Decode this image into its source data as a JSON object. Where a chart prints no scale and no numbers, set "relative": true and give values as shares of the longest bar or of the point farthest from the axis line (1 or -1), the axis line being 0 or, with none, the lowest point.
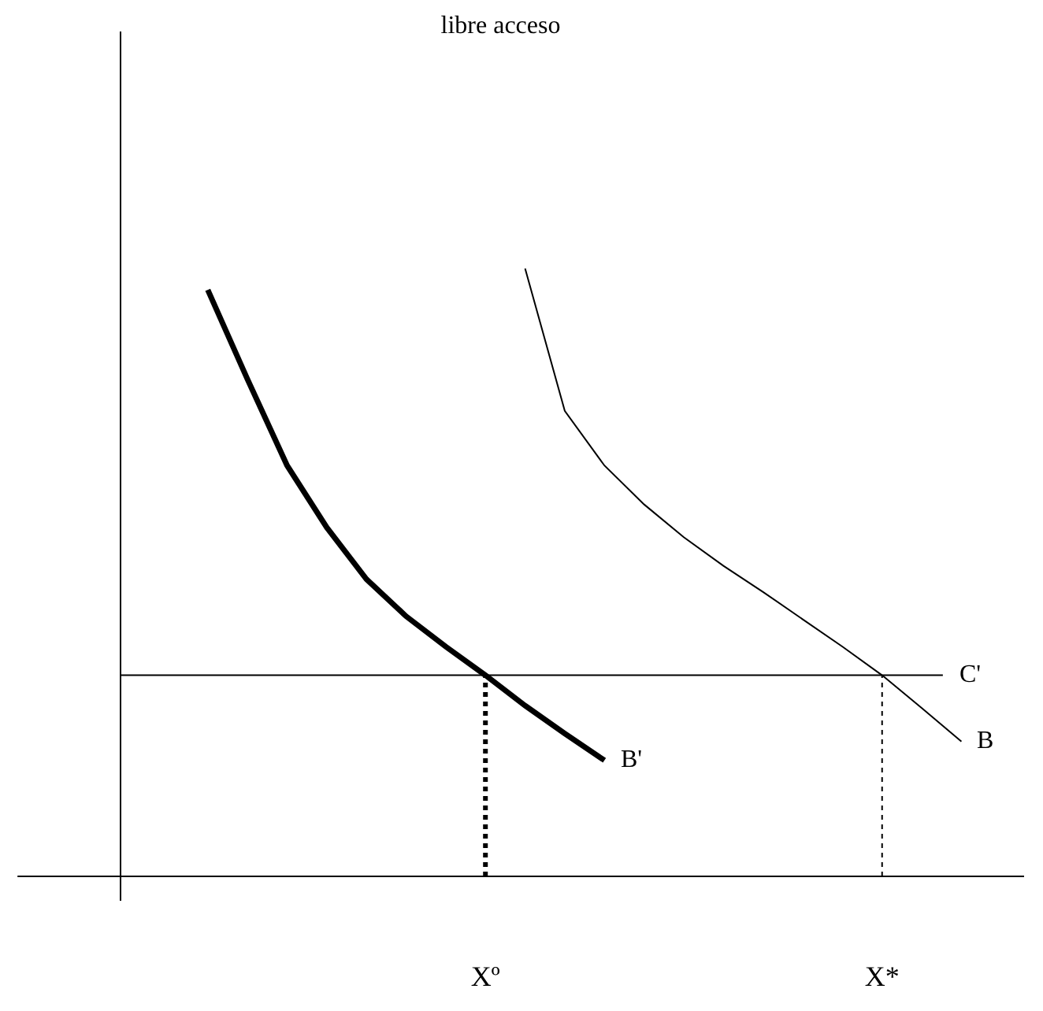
{
  "chart_data": {
    "type": "line",
    "title": "libre acceso",
    "relative": true,
    "grid": false,
    "legend": false,
    "marker": "none",
    "line_style": "solid",
    "categories": [
      null,
      null,
      null,
      null,
      null,
      null,
      null,
      null,
      null,
      "Xº",
      null,
      null,
      null,
      null,
      null,
      null,
      null,
      null,
      null,
      "X*",
      null,
      null,
      null
    ],
    "series": [
      {
        "name": "B'",
        "color": "#000000",
        "values": [
          null,
          null,
          0.965,
          0.818,
          0.676,
          0.574,
          0.489,
          0.428,
          0.378,
          0.331,
          0.281,
          0.235,
          0.191,
          null,
          null,
          null,
          null,
          null,
          null,
          null,
          null,
          null,
          null
        ]
      },
      {
        "name": "B",
        "color": "#000000",
        "values": [
          null,
          null,
          null,
          null,
          null,
          null,
          null,
          null,
          null,
          null,
          1,
          0.766,
          0.676,
          0.612,
          0.558,
          0.511,
          0.468,
          0.423,
          0.378,
          0.331,
          0.277,
          0.222,
          null
        ]
      }
    ],
    "ref_lines": [
      {
        "axis": "y",
        "value": 0.331,
        "label": "C'",
        "color": "#000000"
      },
      {
        "axis": "x",
        "value": "Xº",
        "color": "#000000",
        "line_style": "dotted"
      },
      {
        "axis": "x",
        "value": "X*",
        "color": "#000000",
        "line_style": "dotted"
      }
    ]
  }
}
